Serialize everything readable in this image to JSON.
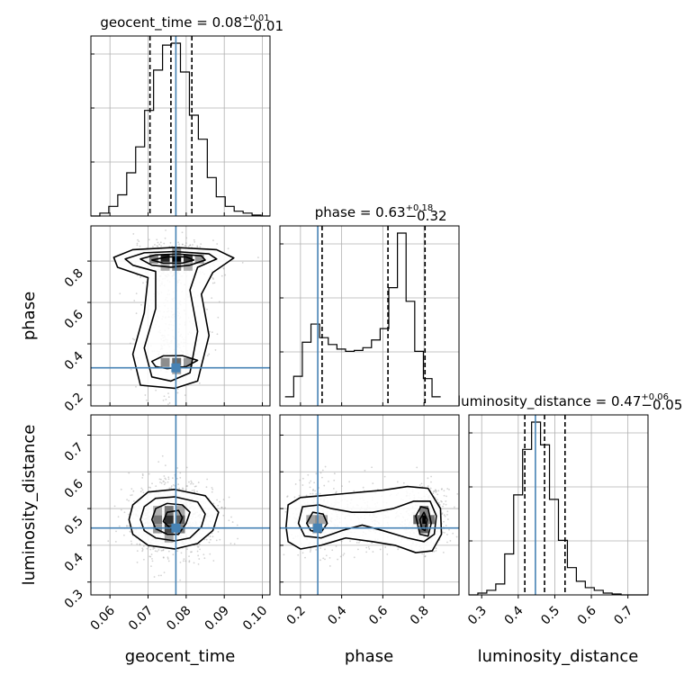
{
  "chart_data": {
    "type": "corner",
    "parameters": [
      "geocent_time",
      "phase",
      "luminosity_distance"
    ],
    "titles": [
      {
        "text": "geocent_time = 0.08",
        "sup": "+0.01",
        "sub": "−0.01"
      },
      {
        "text": "phase = 0.63",
        "sup": "+0.18",
        "sub": "−0.32"
      },
      {
        "text": "luminosity_distance = 0.47",
        "sup": "+0.06",
        "sub": "−0.05"
      }
    ],
    "ranges": [
      [
        0.055,
        0.102
      ],
      [
        0.1,
        0.97
      ],
      [
        0.265,
        0.755
      ]
    ],
    "ticks": [
      [
        "0.06",
        "0.07",
        "0.08",
        "0.09",
        "0.10"
      ],
      [
        "0.2",
        "0.4",
        "0.6",
        "0.8"
      ],
      [
        "0.3",
        "0.4",
        "0.5",
        "0.6",
        "0.7"
      ]
    ],
    "tick_values": [
      [
        0.06,
        0.07,
        0.08,
        0.09,
        0.1
      ],
      [
        0.2,
        0.4,
        0.6,
        0.8
      ],
      [
        0.3,
        0.4,
        0.5,
        0.6,
        0.7
      ]
    ],
    "truths": [
      0.0773,
      0.284,
      0.447
    ],
    "quantiles": [
      [
        0.0705,
        0.076,
        0.0815
      ],
      [
        0.305,
        0.625,
        0.805
      ],
      [
        0.418,
        0.472,
        0.528
      ]
    ],
    "histograms": [
      {
        "edges_from": 0.055,
        "bin_width": 0.00235,
        "counts": [
          0,
          3,
          10,
          22,
          45,
          72,
          110,
          152,
          178,
          180,
          150,
          105,
          80,
          40,
          20,
          10,
          5,
          3,
          1,
          0
        ]
      },
      {
        "edges_from": 0.125,
        "bin_width": 0.042,
        "counts": [
          20,
          65,
          140,
          180,
          150,
          135,
          125,
          120,
          122,
          128,
          145,
          170,
          260,
          380,
          230,
          120,
          60,
          20
        ]
      },
      {
        "edges_from": 0.265,
        "bin_width": 0.0245,
        "counts": [
          0,
          2,
          5,
          12,
          45,
          110,
          160,
          190,
          165,
          105,
          60,
          30,
          15,
          8,
          5,
          2,
          1,
          0,
          0,
          0
        ]
      }
    ],
    "contours": [
      {
        "x": 0,
        "y": 1,
        "levels": [
          {
            "points": [
              [
                0.061,
                0.818
              ],
              [
                0.066,
                0.855
              ],
              [
                0.077,
                0.866
              ],
              [
                0.088,
                0.855
              ],
              [
                0.0925,
                0.815
              ],
              [
                0.087,
                0.745
              ],
              [
                0.084,
                0.64
              ],
              [
                0.086,
                0.44
              ],
              [
                0.083,
                0.22
              ],
              [
                0.077,
                0.185
              ],
              [
                0.068,
                0.2
              ],
              [
                0.066,
                0.35
              ],
              [
                0.069,
                0.55
              ],
              [
                0.07,
                0.72
              ],
              [
                0.062,
                0.77
              ]
            ]
          },
          {
            "points": [
              [
                0.064,
                0.81
              ],
              [
                0.069,
                0.84
              ],
              [
                0.077,
                0.846
              ],
              [
                0.086,
                0.835
              ],
              [
                0.088,
                0.81
              ],
              [
                0.083,
                0.77
              ],
              [
                0.081,
                0.66
              ],
              [
                0.083,
                0.46
              ],
              [
                0.081,
                0.26
              ],
              [
                0.076,
                0.22
              ],
              [
                0.071,
                0.24
              ],
              [
                0.069,
                0.38
              ],
              [
                0.072,
                0.57
              ],
              [
                0.072,
                0.75
              ],
              [
                0.066,
                0.78
              ]
            ]
          },
          {
            "points": [
              [
                0.068,
                0.81
              ],
              [
                0.072,
                0.83
              ],
              [
                0.078,
                0.834
              ],
              [
                0.084,
                0.825
              ],
              [
                0.085,
                0.805
              ],
              [
                0.081,
                0.78
              ],
              [
                0.076,
                0.77
              ],
              [
                0.071,
                0.78
              ]
            ]
          },
          {
            "points": [
              [
                0.071,
                0.805
              ],
              [
                0.075,
                0.82
              ],
              [
                0.08,
                0.82
              ],
              [
                0.082,
                0.805
              ],
              [
                0.079,
                0.79
              ],
              [
                0.074,
                0.79
              ]
            ]
          },
          {
            "points": [
              [
                0.071,
                0.315
              ],
              [
                0.074,
                0.342
              ],
              [
                0.079,
                0.343
              ],
              [
                0.083,
                0.32
              ],
              [
                0.08,
                0.29
              ],
              [
                0.075,
                0.28
              ],
              [
                0.072,
                0.29
              ]
            ]
          }
        ]
      },
      {
        "x": 0,
        "y": 2,
        "levels": [
          {
            "points": [
              [
                0.065,
                0.47
              ],
              [
                0.066,
                0.51
              ],
              [
                0.07,
                0.545
              ],
              [
                0.077,
                0.552
              ],
              [
                0.085,
                0.535
              ],
              [
                0.0885,
                0.49
              ],
              [
                0.087,
                0.44
              ],
              [
                0.083,
                0.405
              ],
              [
                0.077,
                0.39
              ],
              [
                0.07,
                0.4
              ],
              [
                0.066,
                0.43
              ]
            ]
          },
          {
            "points": [
              [
                0.068,
                0.47
              ],
              [
                0.069,
                0.505
              ],
              [
                0.072,
                0.528
              ],
              [
                0.077,
                0.532
              ],
              [
                0.083,
                0.518
              ],
              [
                0.085,
                0.485
              ],
              [
                0.084,
                0.45
              ],
              [
                0.081,
                0.42
              ],
              [
                0.077,
                0.412
              ],
              [
                0.072,
                0.42
              ],
              [
                0.069,
                0.44
              ]
            ]
          },
          {
            "points": [
              [
                0.071,
                0.47
              ],
              [
                0.072,
                0.5
              ],
              [
                0.075,
                0.514
              ],
              [
                0.079,
                0.51
              ],
              [
                0.081,
                0.49
              ],
              [
                0.08,
                0.46
              ],
              [
                0.078,
                0.43
              ],
              [
                0.075,
                0.43
              ],
              [
                0.072,
                0.445
              ]
            ]
          },
          {
            "points": [
              [
                0.074,
                0.465
              ],
              [
                0.075,
                0.49
              ],
              [
                0.078,
                0.495
              ],
              [
                0.079,
                0.475
              ],
              [
                0.078,
                0.45
              ],
              [
                0.076,
                0.445
              ]
            ]
          }
        ]
      },
      {
        "x": 1,
        "y": 2,
        "levels": [
          {
            "points": [
              [
                0.13,
                0.45
              ],
              [
                0.14,
                0.51
              ],
              [
                0.2,
                0.53
              ],
              [
                0.3,
                0.535
              ],
              [
                0.4,
                0.54
              ],
              [
                0.5,
                0.545
              ],
              [
                0.6,
                0.55
              ],
              [
                0.72,
                0.56
              ],
              [
                0.82,
                0.555
              ],
              [
                0.88,
                0.5
              ],
              [
                0.885,
                0.43
              ],
              [
                0.84,
                0.385
              ],
              [
                0.76,
                0.38
              ],
              [
                0.66,
                0.4
              ],
              [
                0.55,
                0.41
              ],
              [
                0.42,
                0.42
              ],
              [
                0.3,
                0.4
              ],
              [
                0.2,
                0.39
              ],
              [
                0.14,
                0.41
              ]
            ]
          },
          {
            "points": [
              [
                0.19,
                0.46
              ],
              [
                0.21,
                0.505
              ],
              [
                0.29,
                0.51
              ],
              [
                0.35,
                0.5
              ],
              [
                0.45,
                0.49
              ],
              [
                0.55,
                0.49
              ],
              [
                0.65,
                0.5
              ],
              [
                0.75,
                0.52
              ],
              [
                0.83,
                0.52
              ],
              [
                0.86,
                0.48
              ],
              [
                0.85,
                0.43
              ],
              [
                0.8,
                0.41
              ],
              [
                0.72,
                0.42
              ],
              [
                0.6,
                0.44
              ],
              [
                0.5,
                0.455
              ],
              [
                0.4,
                0.44
              ],
              [
                0.3,
                0.42
              ],
              [
                0.22,
                0.425
              ]
            ]
          },
          {
            "points": [
              [
                0.23,
                0.46
              ],
              [
                0.26,
                0.49
              ],
              [
                0.31,
                0.485
              ],
              [
                0.33,
                0.46
              ],
              [
                0.3,
                0.435
              ],
              [
                0.25,
                0.44
              ]
            ]
          },
          {
            "points": [
              [
                0.76,
                0.48
              ],
              [
                0.785,
                0.505
              ],
              [
                0.82,
                0.5
              ],
              [
                0.835,
                0.46
              ],
              [
                0.82,
                0.425
              ],
              [
                0.78,
                0.43
              ]
            ]
          },
          {
            "points": [
              [
                0.78,
                0.47
              ],
              [
                0.8,
                0.49
              ],
              [
                0.815,
                0.47
              ],
              [
                0.805,
                0.44
              ],
              [
                0.79,
                0.445
              ]
            ]
          }
        ]
      }
    ],
    "dense_bins": [
      {
        "x": 0,
        "y": 1,
        "cells": [
          [
            0.0775,
            0.81,
            1.0
          ],
          [
            0.0745,
            0.81,
            0.85
          ],
          [
            0.0805,
            0.81,
            0.75
          ],
          [
            0.0715,
            0.81,
            0.45
          ],
          [
            0.0835,
            0.81,
            0.35
          ],
          [
            0.0775,
            0.845,
            0.4
          ],
          [
            0.0775,
            0.775,
            0.45
          ],
          [
            0.0745,
            0.775,
            0.25
          ],
          [
            0.0805,
            0.775,
            0.25
          ],
          [
            0.0775,
            0.31,
            0.55
          ],
          [
            0.0745,
            0.31,
            0.4
          ],
          [
            0.0805,
            0.31,
            0.35
          ],
          [
            0.0775,
            0.275,
            0.3
          ]
        ]
      },
      {
        "x": 0,
        "y": 2,
        "cells": [
          [
            0.0755,
            0.47,
            0.8
          ],
          [
            0.0755,
            0.445,
            0.7
          ],
          [
            0.0785,
            0.47,
            0.6
          ],
          [
            0.0725,
            0.47,
            0.5
          ],
          [
            0.0755,
            0.495,
            0.5
          ],
          [
            0.0785,
            0.445,
            0.45
          ],
          [
            0.0725,
            0.445,
            0.35
          ],
          [
            0.0785,
            0.495,
            0.3
          ],
          [
            0.0755,
            0.42,
            0.3
          ],
          [
            0.0725,
            0.495,
            0.25
          ]
        ]
      },
      {
        "x": 1,
        "y": 2,
        "cells": [
          [
            0.8,
            0.47,
            1.0
          ],
          [
            0.8,
            0.445,
            0.6
          ],
          [
            0.77,
            0.47,
            0.55
          ],
          [
            0.83,
            0.47,
            0.5
          ],
          [
            0.8,
            0.495,
            0.45
          ],
          [
            0.28,
            0.47,
            0.4
          ],
          [
            0.25,
            0.47,
            0.3
          ],
          [
            0.31,
            0.47,
            0.3
          ],
          [
            0.28,
            0.445,
            0.3
          ]
        ]
      }
    ],
    "colors": {
      "truth": "#4682b4",
      "hist": "#000000",
      "grid": "#b0b0b0",
      "scatter": "#9e9e9e"
    }
  }
}
